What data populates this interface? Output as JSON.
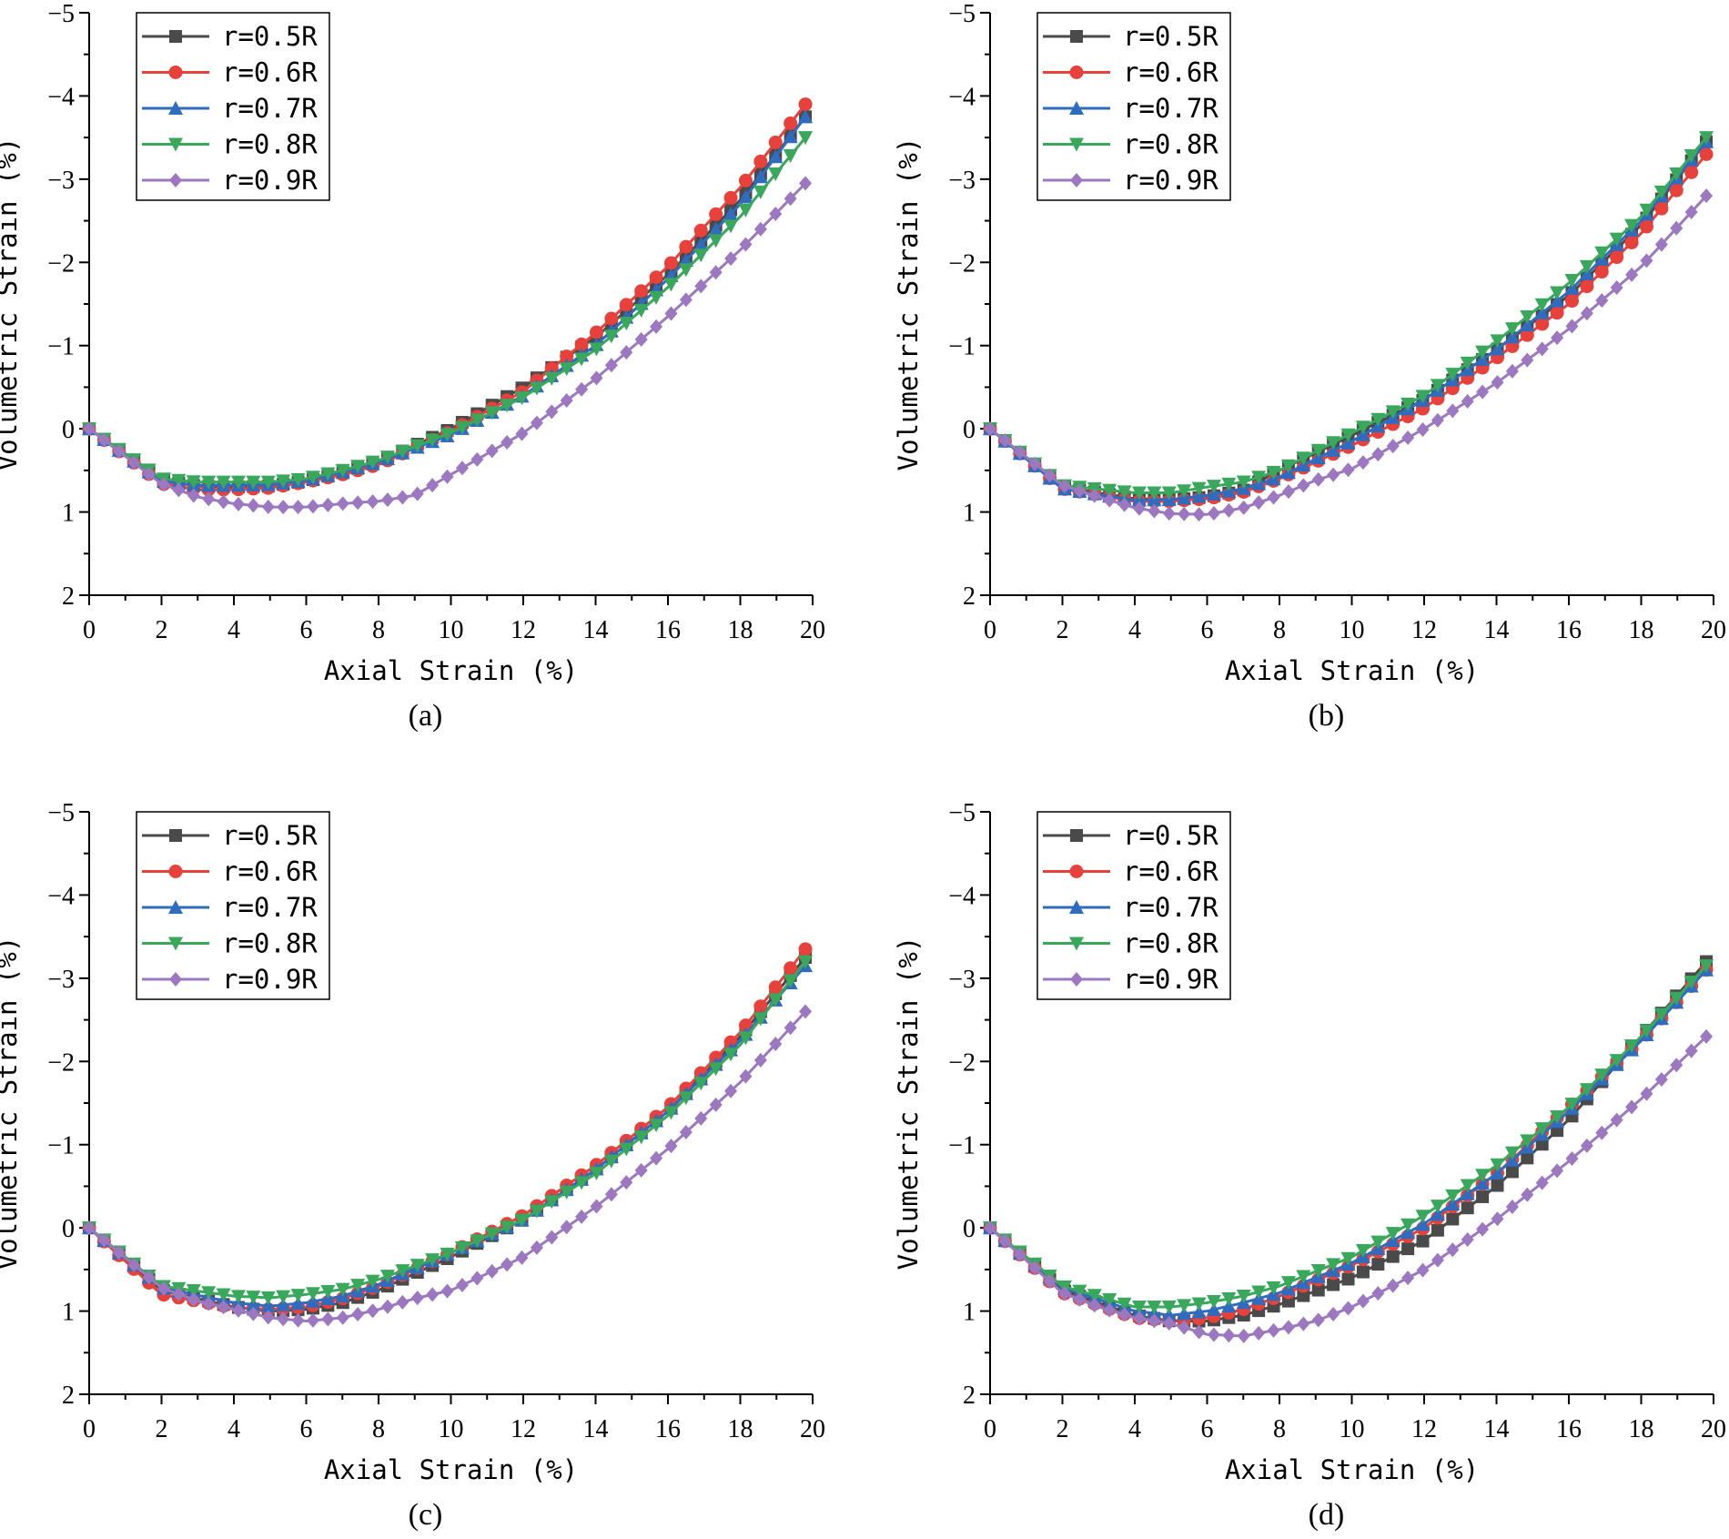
{
  "chart_data": [
    {
      "type": "line",
      "panel_label": "(a)",
      "xlabel": "Axial Strain (%)",
      "ylabel": "Volumetric Strain (%)",
      "xlim": [
        0,
        20
      ],
      "ylim": [
        2,
        -5
      ],
      "y_inverted": true,
      "xticks": [
        "0",
        "2",
        "4",
        "6",
        "8",
        "10",
        "12",
        "14",
        "16",
        "18",
        "20"
      ],
      "yticks": [
        "-5",
        "-4",
        "-3",
        "-2",
        "-1",
        "0",
        "1",
        "2"
      ],
      "legend_position": "top-left",
      "series": [
        {
          "name": "r=0.5R",
          "color": "#4a4a4a",
          "marker": "square",
          "x": [
            0,
            2,
            3,
            4,
            5,
            6,
            7,
            8,
            10,
            12,
            14,
            16,
            18,
            19.8
          ],
          "y": [
            0,
            0.62,
            0.69,
            0.7,
            0.69,
            0.63,
            0.53,
            0.4,
            0.0,
            -0.5,
            -1.1,
            -1.85,
            -2.75,
            -3.75
          ]
        },
        {
          "name": "r=0.6R",
          "color": "#e8403a",
          "marker": "circle",
          "x": [
            0,
            2,
            3,
            4,
            5,
            6,
            7,
            8,
            10,
            12,
            14,
            16,
            18,
            19.8
          ],
          "y": [
            0,
            0.66,
            0.73,
            0.73,
            0.71,
            0.64,
            0.55,
            0.43,
            0.03,
            -0.45,
            -1.15,
            -1.95,
            -2.9,
            -3.9
          ]
        },
        {
          "name": "r=0.7R",
          "color": "#2f6bbf",
          "marker": "triangle-up",
          "x": [
            0,
            2,
            3,
            4,
            5,
            6,
            7,
            8,
            10,
            12,
            14,
            16,
            18,
            19.8
          ],
          "y": [
            0,
            0.63,
            0.68,
            0.68,
            0.67,
            0.62,
            0.52,
            0.4,
            0.07,
            -0.4,
            -1.0,
            -1.8,
            -2.7,
            -3.75
          ]
        },
        {
          "name": "r=0.8R",
          "color": "#3aa85c",
          "marker": "triangle-down",
          "x": [
            0,
            2,
            3,
            4,
            5,
            6,
            7,
            8,
            10,
            12,
            14,
            16,
            18,
            19.8
          ],
          "y": [
            0,
            0.6,
            0.64,
            0.64,
            0.64,
            0.6,
            0.5,
            0.38,
            0.05,
            -0.38,
            -0.95,
            -1.7,
            -2.55,
            -3.5
          ]
        },
        {
          "name": "r=0.9R",
          "color": "#9b78bf",
          "marker": "diamond",
          "x": [
            0,
            2,
            3,
            4,
            5,
            6,
            7,
            8,
            9,
            10,
            12,
            14,
            16,
            18,
            19.8
          ],
          "y": [
            0,
            0.66,
            0.82,
            0.9,
            0.94,
            0.94,
            0.9,
            0.87,
            0.8,
            0.55,
            0.05,
            -0.6,
            -1.35,
            -2.15,
            -2.95
          ]
        }
      ]
    },
    {
      "type": "line",
      "panel_label": "(b)",
      "xlabel": "Axial Strain (%)",
      "ylabel": "Volumetric Strain (%)",
      "xlim": [
        0,
        20
      ],
      "ylim": [
        2,
        -5
      ],
      "y_inverted": true,
      "xticks": [
        "0",
        "2",
        "4",
        "6",
        "8",
        "10",
        "12",
        "14",
        "16",
        "18",
        "20"
      ],
      "yticks": [
        "-5",
        "-4",
        "-3",
        "-2",
        "-1",
        "0",
        "1",
        "2"
      ],
      "legend_position": "top-left",
      "series": [
        {
          "name": "r=0.5R",
          "color": "#4a4a4a",
          "marker": "square",
          "x": [
            0,
            2,
            4,
            5,
            6,
            7,
            8,
            10,
            12,
            14,
            16,
            18,
            19.8
          ],
          "y": [
            0,
            0.7,
            0.84,
            0.85,
            0.82,
            0.74,
            0.5,
            0.08,
            -0.35,
            -0.95,
            -1.6,
            -2.45,
            -3.45
          ]
        },
        {
          "name": "r=0.6R",
          "color": "#e8403a",
          "marker": "circle",
          "x": [
            0,
            2,
            4,
            5,
            6,
            7,
            8,
            10,
            12,
            14,
            16,
            18,
            19.8
          ],
          "y": [
            0,
            0.72,
            0.87,
            0.87,
            0.84,
            0.76,
            0.6,
            0.2,
            -0.25,
            -0.85,
            -1.5,
            -2.35,
            -3.3
          ]
        },
        {
          "name": "r=0.7R",
          "color": "#2f6bbf",
          "marker": "triangle-up",
          "x": [
            0,
            2,
            4,
            5,
            6,
            7,
            8,
            10,
            12,
            14,
            16,
            18,
            19.8
          ],
          "y": [
            0,
            0.72,
            0.86,
            0.85,
            0.8,
            0.72,
            0.58,
            0.15,
            -0.35,
            -0.95,
            -1.65,
            -2.5,
            -3.45
          ]
        },
        {
          "name": "r=0.8R",
          "color": "#3aa85c",
          "marker": "triangle-down",
          "x": [
            0,
            2,
            4,
            5,
            6,
            7,
            8,
            10,
            12,
            14,
            16,
            18,
            19.8
          ],
          "y": [
            0,
            0.68,
            0.77,
            0.77,
            0.7,
            0.64,
            0.5,
            0.05,
            -0.4,
            -1.05,
            -1.75,
            -2.55,
            -3.5
          ]
        },
        {
          "name": "r=0.9R",
          "color": "#9b78bf",
          "marker": "diamond",
          "x": [
            0,
            2,
            3,
            4,
            5,
            6,
            7,
            8,
            9,
            10,
            12,
            14,
            16,
            18,
            19.8
          ],
          "y": [
            0,
            0.68,
            0.82,
            0.95,
            1.02,
            1.03,
            0.95,
            0.8,
            0.62,
            0.48,
            0.0,
            -0.55,
            -1.2,
            -1.95,
            -2.8
          ]
        }
      ]
    },
    {
      "type": "line",
      "panel_label": "(c)",
      "xlabel": "Axial Strain (%)",
      "ylabel": "Volumetric Strain (%)",
      "xlim": [
        0,
        20
      ],
      "ylim": [
        2,
        -5
      ],
      "y_inverted": true,
      "xticks": [
        "0",
        "2",
        "4",
        "6",
        "8",
        "10",
        "12",
        "14",
        "16",
        "18",
        "20"
      ],
      "yticks": [
        "-5",
        "-4",
        "-3",
        "-2",
        "-1",
        "0",
        "1",
        "2"
      ],
      "legend_position": "top-left",
      "series": [
        {
          "name": "r=0.5R",
          "color": "#4a4a4a",
          "marker": "square",
          "x": [
            0,
            2,
            4,
            5,
            6,
            7,
            8,
            10,
            12,
            14,
            16,
            18,
            19.8
          ],
          "y": [
            0,
            0.75,
            0.95,
            1.0,
            0.98,
            0.9,
            0.75,
            0.35,
            -0.1,
            -0.7,
            -1.4,
            -2.3,
            -3.25
          ]
        },
        {
          "name": "r=0.6R",
          "color": "#e8403a",
          "marker": "circle",
          "x": [
            0,
            2,
            4,
            5,
            6,
            7,
            8,
            10,
            12,
            14,
            16,
            18,
            19.8
          ],
          "y": [
            0,
            0.8,
            0.96,
            0.98,
            0.95,
            0.85,
            0.7,
            0.3,
            -0.15,
            -0.75,
            -1.45,
            -2.35,
            -3.35
          ]
        },
        {
          "name": "r=0.7R",
          "color": "#2f6bbf",
          "marker": "triangle-up",
          "x": [
            0,
            2,
            4,
            5,
            6,
            7,
            8,
            10,
            12,
            14,
            16,
            18,
            19.8
          ],
          "y": [
            0,
            0.72,
            0.9,
            0.94,
            0.9,
            0.82,
            0.68,
            0.3,
            -0.1,
            -0.7,
            -1.4,
            -2.25,
            -3.15
          ]
        },
        {
          "name": "r=0.8R",
          "color": "#3aa85c",
          "marker": "triangle-down",
          "x": [
            0,
            2,
            4,
            5,
            6,
            7,
            8,
            10,
            12,
            14,
            16,
            18,
            19.8
          ],
          "y": [
            0,
            0.7,
            0.82,
            0.84,
            0.8,
            0.74,
            0.62,
            0.3,
            -0.1,
            -0.65,
            -1.35,
            -2.2,
            -3.2
          ]
        },
        {
          "name": "r=0.9R",
          "color": "#9b78bf",
          "marker": "diamond",
          "x": [
            0,
            2,
            3,
            4,
            5,
            6,
            7,
            8,
            9,
            10,
            12,
            14,
            16,
            18,
            19.8
          ],
          "y": [
            0,
            0.72,
            0.88,
            0.98,
            1.08,
            1.12,
            1.08,
            0.98,
            0.85,
            0.75,
            0.35,
            -0.25,
            -0.95,
            -1.75,
            -2.6
          ]
        }
      ]
    },
    {
      "type": "line",
      "panel_label": "(d)",
      "xlabel": "Axial Strain (%)",
      "ylabel": "Volumetric Strain (%)",
      "xlim": [
        0,
        20
      ],
      "ylim": [
        2,
        -5
      ],
      "y_inverted": true,
      "xticks": [
        "0",
        "2",
        "4",
        "6",
        "8",
        "10",
        "12",
        "14",
        "16",
        "18",
        "20"
      ],
      "yticks": [
        "-5",
        "-4",
        "-3",
        "-2",
        "-1",
        "0",
        "1",
        "2"
      ],
      "legend_position": "top-left",
      "series": [
        {
          "name": "r=0.5R",
          "color": "#4a4a4a",
          "marker": "square",
          "x": [
            0,
            2,
            4,
            5,
            6,
            7,
            8,
            10,
            12,
            14,
            16,
            18,
            19.8
          ],
          "y": [
            0,
            0.75,
            1.05,
            1.12,
            1.12,
            1.05,
            0.92,
            0.6,
            0.15,
            -0.5,
            -1.3,
            -2.3,
            -3.2
          ]
        },
        {
          "name": "r=0.6R",
          "color": "#e8403a",
          "marker": "circle",
          "x": [
            0,
            2,
            4,
            5,
            6,
            7,
            8,
            10,
            12,
            14,
            16,
            18,
            19.8
          ],
          "y": [
            0,
            0.78,
            1.08,
            1.12,
            1.08,
            0.98,
            0.82,
            0.45,
            0.0,
            -0.65,
            -1.45,
            -2.25,
            -3.1
          ]
        },
        {
          "name": "r=0.7R",
          "color": "#2f6bbf",
          "marker": "triangle-up",
          "x": [
            0,
            2,
            4,
            5,
            6,
            7,
            8,
            10,
            12,
            14,
            16,
            18,
            19.8
          ],
          "y": [
            0,
            0.72,
            1.0,
            1.05,
            1.0,
            0.9,
            0.78,
            0.42,
            -0.05,
            -0.65,
            -1.4,
            -2.25,
            -3.1
          ]
        },
        {
          "name": "r=0.8R",
          "color": "#3aa85c",
          "marker": "triangle-down",
          "x": [
            0,
            2,
            4,
            5,
            6,
            7,
            8,
            10,
            12,
            14,
            16,
            18,
            19.8
          ],
          "y": [
            0,
            0.7,
            0.95,
            0.95,
            0.9,
            0.82,
            0.7,
            0.35,
            -0.15,
            -0.75,
            -1.45,
            -2.3,
            -3.15
          ]
        },
        {
          "name": "r=0.9R",
          "color": "#9b78bf",
          "marker": "diamond",
          "x": [
            0,
            2,
            3,
            4,
            5,
            6,
            7,
            8,
            9,
            10,
            12,
            14,
            16,
            18,
            19.8
          ],
          "y": [
            0,
            0.78,
            0.95,
            1.08,
            1.15,
            1.28,
            1.3,
            1.22,
            1.12,
            0.95,
            0.5,
            -0.1,
            -0.8,
            -1.55,
            -2.3
          ]
        }
      ]
    }
  ]
}
